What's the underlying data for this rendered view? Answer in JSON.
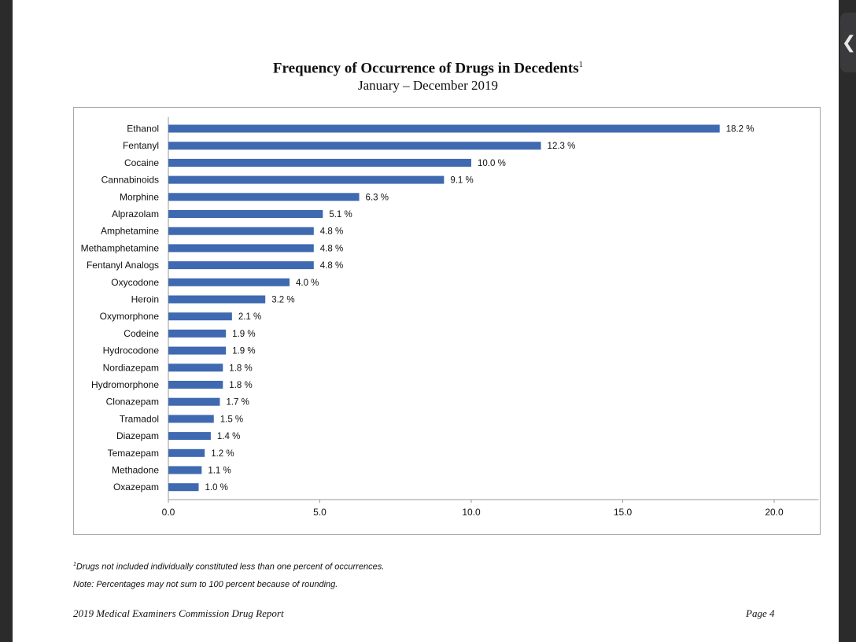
{
  "page": {
    "title": "Frequency of Occurrence of Drugs in Decedents",
    "title_footnote_mark": "1",
    "subtitle": "January – December 2019",
    "footnote_mark": "1",
    "footnote_text": "Drugs not included individually constituted less than one percent of occurrences.",
    "note": "Note: Percentages may not sum to 100 percent because of rounding.",
    "footer_left": "2019 Medical Examiners Commission Drug Report",
    "footer_right": "Page 4",
    "side_tab_glyph": "❮"
  },
  "chart_data": {
    "type": "bar",
    "orientation": "horizontal",
    "title": "Frequency of Occurrence of Drugs in Decedents",
    "subtitle": "January – December 2019",
    "categories": [
      "Ethanol",
      "Fentanyl",
      "Cocaine",
      "Cannabinoids",
      "Morphine",
      "Alprazolam",
      "Amphetamine",
      "Methamphetamine",
      "Fentanyl Analogs",
      "Oxycodone",
      "Heroin",
      "Oxymorphone",
      "Codeine",
      "Hydrocodone",
      "Nordiazepam",
      "Hydromorphone",
      "Clonazepam",
      "Tramadol",
      "Diazepam",
      "Temazepam",
      "Methadone",
      "Oxazepam"
    ],
    "values": [
      18.2,
      12.3,
      10.0,
      9.1,
      6.3,
      5.1,
      4.8,
      4.8,
      4.8,
      4.0,
      3.2,
      2.1,
      1.9,
      1.9,
      1.8,
      1.8,
      1.7,
      1.5,
      1.4,
      1.2,
      1.1,
      1.0
    ],
    "value_labels": [
      "18.2 %",
      "12.3 %",
      "10.0 %",
      "9.1 %",
      "6.3 %",
      "5.1 %",
      "4.8 %",
      "4.8 %",
      "4.8 %",
      "4.0 %",
      "3.2 %",
      "2.1 %",
      "1.9 %",
      "1.9 %",
      "1.8 %",
      "1.8 %",
      "1.7 %",
      "1.5 %",
      "1.4 %",
      "1.2 %",
      "1.1 %",
      "1.0 %"
    ],
    "xlim": [
      0,
      21
    ],
    "xticks": [
      0,
      5,
      10,
      15,
      20
    ],
    "xtick_labels": [
      "0.0",
      "5.0",
      "10.0",
      "15.0",
      "20.0"
    ],
    "xlabel": "",
    "ylabel": "",
    "grid": false,
    "legend": "none",
    "bar_color": "#3f69b0"
  }
}
